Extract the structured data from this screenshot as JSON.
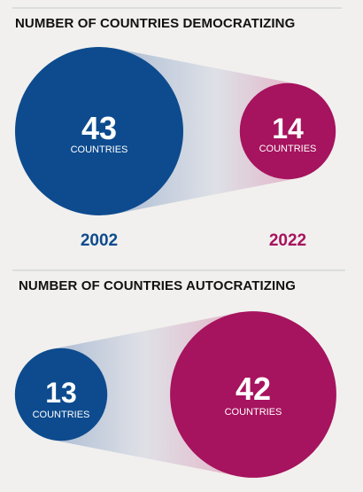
{
  "chart_data": [
    {
      "type": "bubble-comparison",
      "title": "NUMBER OF COUNTRIES DEMOCRATIZING",
      "unit_label": "COUNTRIES",
      "categories": [
        "2002",
        "2022"
      ],
      "values": [
        43,
        14
      ],
      "colors": [
        "#0d4b8e",
        "#a6135e"
      ]
    },
    {
      "type": "bubble-comparison",
      "title": "NUMBER OF COUNTRIES AUTOCRATIZING",
      "unit_label": "COUNTRIES",
      "categories": [
        "2002",
        "2022"
      ],
      "values": [
        13,
        42
      ],
      "colors": [
        "#0d4b8e",
        "#a6135e"
      ]
    }
  ]
}
